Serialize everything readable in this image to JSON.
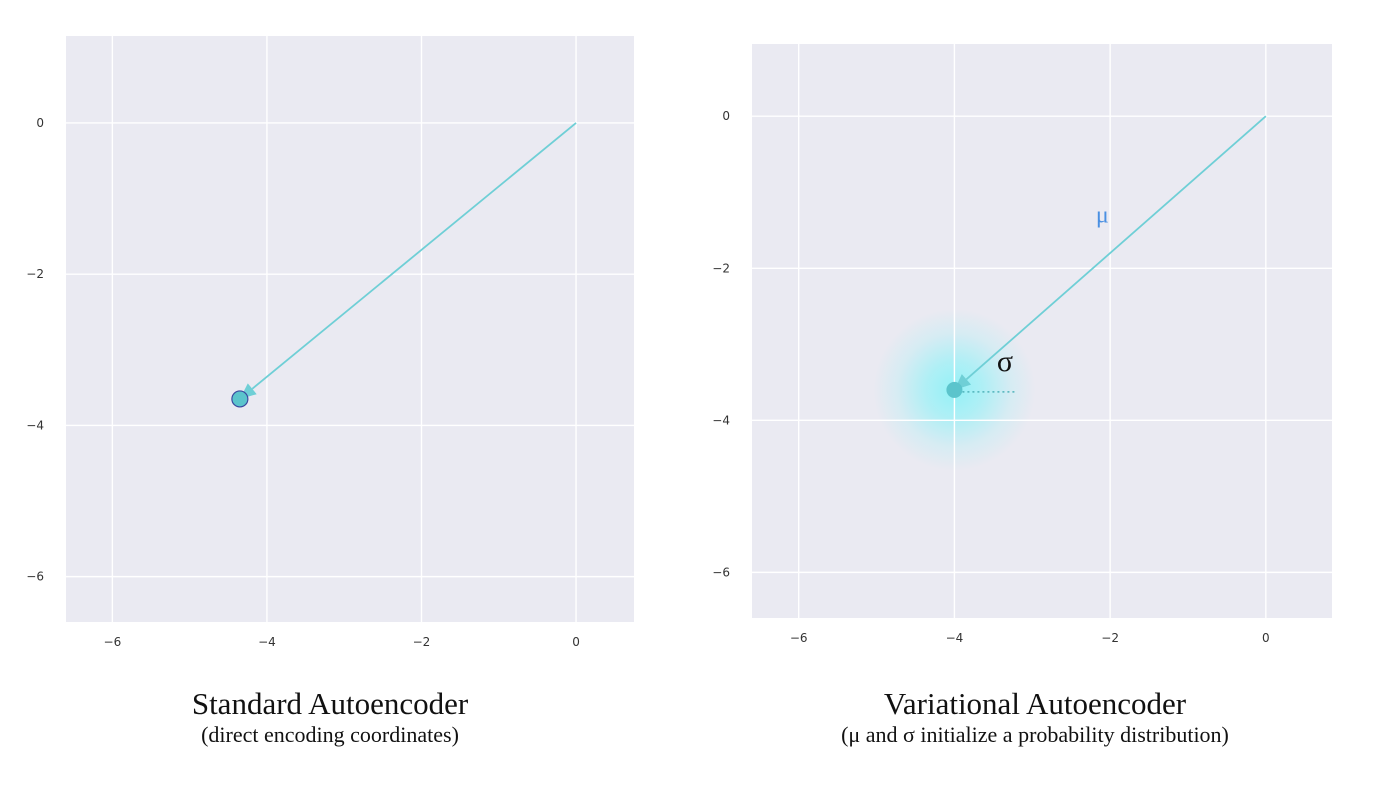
{
  "chart_data": [
    {
      "type": "scatter",
      "title": "Standard Autoencoder",
      "subtitle": "(direct encoding coordinates)",
      "xlim": [
        -6.6,
        0.75
      ],
      "ylim": [
        -6.6,
        1.15
      ],
      "xticks": [
        -6,
        -4,
        -2,
        0
      ],
      "yticks": [
        0,
        -2,
        -4,
        -6
      ],
      "grid": true,
      "arrow": {
        "from": [
          0,
          0
        ],
        "to": [
          -4.35,
          -3.65
        ],
        "color": "#6fcfd6"
      },
      "points": [
        {
          "x": -4.35,
          "y": -3.65,
          "color": "#5bc4cc",
          "edge": "#3b4aa0"
        }
      ]
    },
    {
      "type": "scatter",
      "title": "Variational Autoencoder",
      "subtitle": "(μ and σ initialize a probability distribution)",
      "xlim": [
        -6.6,
        0.85
      ],
      "ylim": [
        -6.6,
        0.95
      ],
      "xticks": [
        -6,
        -4,
        -2,
        0
      ],
      "yticks": [
        0,
        -2,
        -4,
        -6
      ],
      "grid": true,
      "arrow": {
        "from": [
          0,
          0
        ],
        "to": [
          -4.0,
          -3.6
        ],
        "color": "#6fcfd6"
      },
      "points": [
        {
          "x": -4.0,
          "y": -3.6,
          "color": "#5bc4cc"
        }
      ],
      "distribution": {
        "center": [
          -4.0,
          -3.6
        ],
        "sigma": 0.8,
        "color": "#8ff2f7"
      },
      "annotations": [
        {
          "text": "μ",
          "x": -2.1,
          "y": -1.4,
          "color": "#4a90e2"
        },
        {
          "text": "σ",
          "x": -3.35,
          "y": -3.35,
          "color": "#111111"
        }
      ]
    }
  ]
}
